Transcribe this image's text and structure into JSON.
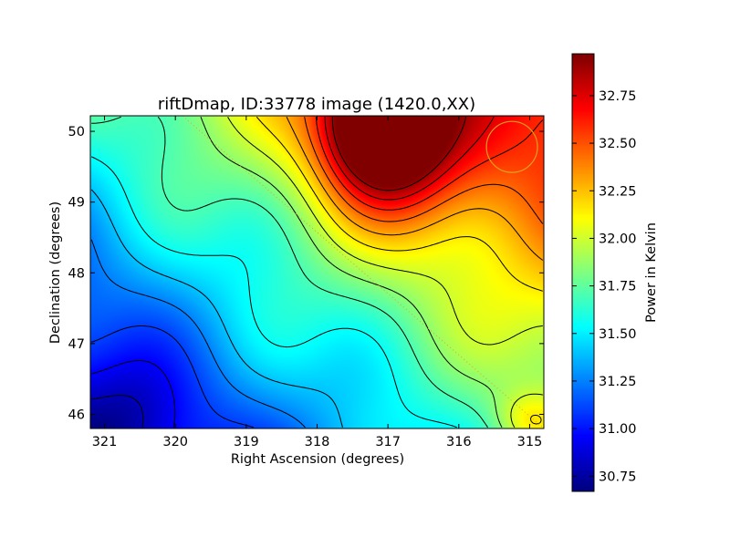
{
  "chart_data": {
    "type": "heatmap",
    "title": "riftDmap, ID:33778 image (1420.0,XX)",
    "xlabel": "Right Ascension (degrees)",
    "ylabel": "Declination (degrees)",
    "colorbar_label": "Power in Kelvin",
    "colormap": "jet",
    "xlim": [
      321.2,
      314.8
    ],
    "ylim": [
      45.8,
      50.22
    ],
    "x_ticks": [
      321,
      320,
      319,
      318,
      317,
      316,
      315
    ],
    "y_ticks": [
      46,
      47,
      48,
      49,
      50
    ],
    "colorbar_range": [
      30.67,
      32.97
    ],
    "colorbar_ticks": [
      "30.75",
      "31.00",
      "31.25",
      "31.50",
      "31.75",
      "32.00",
      "32.25",
      "32.50",
      "32.75"
    ],
    "grid": false,
    "contours": true,
    "overlays": {
      "circle": {
        "ra": 315.25,
        "dec": 49.78,
        "radius_deg": 0.36,
        "color": "#e0a020"
      },
      "dotted_line": {
        "from": [
          319.9,
          50.22
        ],
        "to": [
          314.8,
          45.8
        ],
        "color": "#e0a020"
      }
    },
    "peak": {
      "ra": 317.1,
      "dec": 50.2,
      "value": 32.95
    },
    "minimum": {
      "ra": 321.1,
      "dec": 45.85,
      "value": 30.7
    }
  }
}
